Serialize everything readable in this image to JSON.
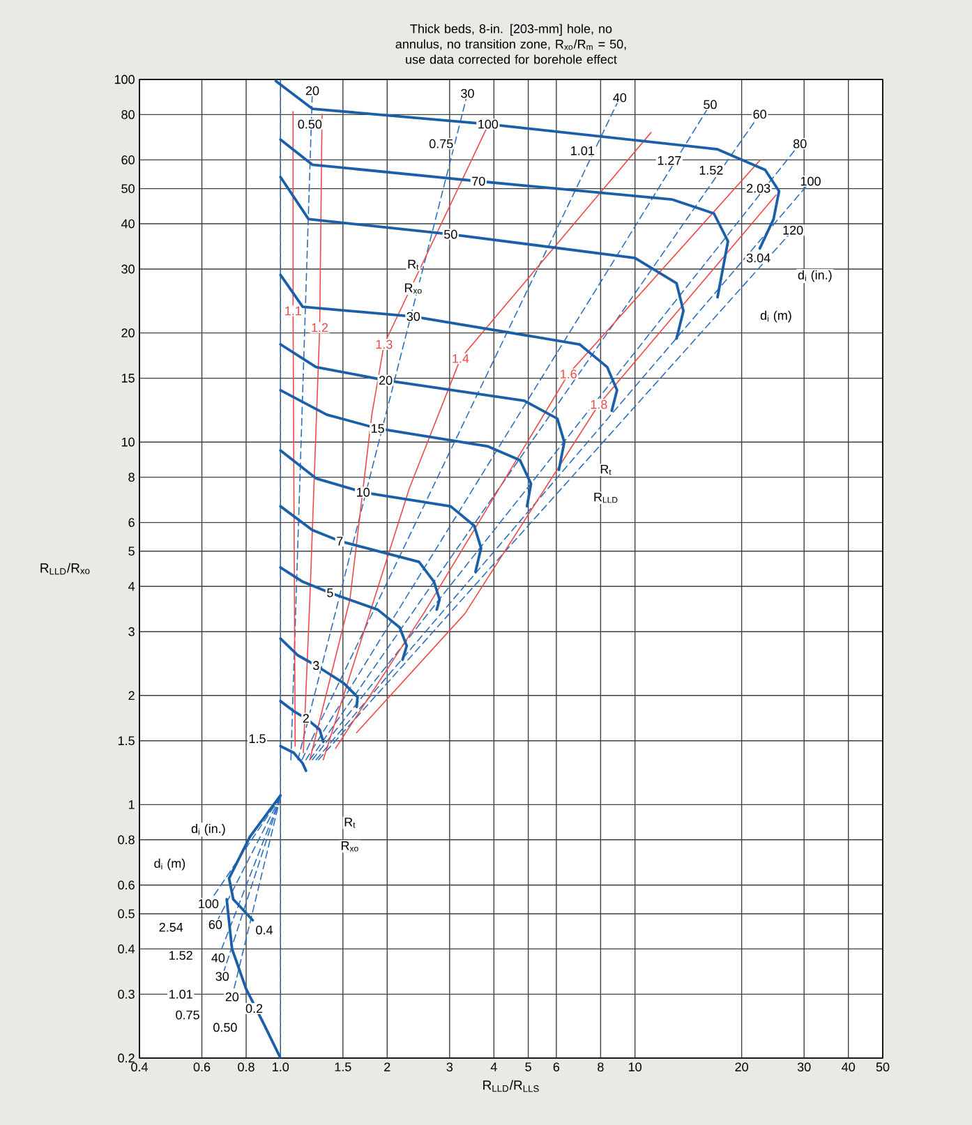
{
  "chart_data": {
    "type": "line",
    "title": "Thick beds, 8-in. [203-mm] hole, no annulus, no transition zone, R$_{xo}$/R$_{m}$ = 50,",
    "subtitle": "use data corrected for borehole effect",
    "xlabel": "R$_{LLD}$/R$_{LLS}$",
    "ylabel": "R$_{LLD}$/R$_{xo}$",
    "log": "xy",
    "grid": true,
    "xlim": [
      0.4,
      50
    ],
    "ylim": [
      0.2,
      100
    ],
    "xticks": [
      0.4,
      0.6,
      0.8,
      {
        "value": 1,
        "label": "1.0"
      },
      1.5,
      2,
      3,
      4,
      5,
      6,
      8,
      10,
      20,
      30,
      40,
      50
    ],
    "yticks": [
      0.2,
      0.3,
      0.4,
      0.5,
      0.6,
      0.8,
      1,
      1.5,
      2,
      3,
      4,
      5,
      6,
      8,
      10,
      15,
      20,
      30,
      40,
      50,
      60,
      80,
      100
    ],
    "series": [
      {
        "color": "#2a6fc0",
        "line_style": "dashed",
        "x": [
          1,
          1
        ],
        "values": [
          100,
          0.2
        ]
      },
      {
        "name": "20",
        "color": "#2a6fc0",
        "line_style": "dashed",
        "x": [
          1.07,
          1.23
        ],
        "values": [
          1.33,
          93.1
        ]
      },
      {
        "name": "30",
        "color": "#2a6fc0",
        "line_style": "dashed",
        "x": [
          1.12,
          3.37
        ],
        "values": [
          1.33,
          91.5
        ]
      },
      {
        "name": "40",
        "color": "#2a6fc0",
        "line_style": "dashed",
        "x": [
          1.15,
          9.06
        ],
        "values": [
          1.33,
          89.1
        ]
      },
      {
        "name": "50",
        "color": "#2a6fc0",
        "line_style": "dashed",
        "x": [
          1.18,
          16.3
        ],
        "values": [
          1.33,
          85.3
        ]
      },
      {
        "name": "60",
        "color": "#2a6fc0",
        "line_style": "dashed",
        "x": [
          1.21,
          22.5
        ],
        "values": [
          1.33,
          80.2
        ]
      },
      {
        "name": "80",
        "color": "#2a6fc0",
        "line_style": "dashed",
        "x": [
          1.23,
          29.2
        ],
        "values": [
          1.33,
          66.5
        ]
      },
      {
        "name": "100",
        "color": "#2a6fc0",
        "line_style": "dashed",
        "x": [
          1.26,
          31.3
        ],
        "values": [
          1.33,
          52.4
        ]
      },
      {
        "name": "120",
        "color": "#2a6fc0",
        "line_style": "dashed",
        "x": [
          1.28,
          27.9
        ],
        "values": [
          1.33,
          38.4
        ]
      },
      {
        "name": "100",
        "color": "#2a6fc0",
        "line_style": "dashed",
        "x": [
          1.0,
          0.626
        ],
        "values": [
          1.05,
          0.533
        ]
      },
      {
        "name": "60",
        "color": "#2a6fc0",
        "line_style": "dashed",
        "x": [
          1.0,
          0.655
        ],
        "values": [
          1.05,
          0.467
        ]
      },
      {
        "name": "40",
        "color": "#2a6fc0",
        "line_style": "dashed",
        "x": [
          1.0,
          0.667
        ],
        "values": [
          1.05,
          0.378
        ]
      },
      {
        "name": "30",
        "color": "#2a6fc0",
        "line_style": "dashed",
        "x": [
          1.0,
          0.685
        ],
        "values": [
          1.05,
          0.336
        ]
      },
      {
        "name": "20",
        "color": "#2a6fc0",
        "line_style": "dashed",
        "x": [
          1.0,
          0.73
        ],
        "values": [
          1.05,
          0.295
        ]
      },
      {
        "name": "1.1",
        "color": "#f04848",
        "line_style": "solid",
        "x": [
          1.085,
          1.085,
          1.1
        ],
        "values": [
          81.6,
          23.0,
          1.45
        ]
      },
      {
        "name": "1.2",
        "color": "#f04848",
        "line_style": "solid",
        "x": [
          1.31,
          1.29,
          1.21,
          1.16
        ],
        "values": [
          80.2,
          20.7,
          3.68,
          1.39
        ]
      },
      {
        "name": "1.3",
        "color": "#f04848",
        "line_style": "solid",
        "x": [
          3.85,
          1.96,
          1.81,
          1.57,
          1.21
        ],
        "values": [
          74.7,
          18.6,
          11.9,
          3.68,
          1.33
        ]
      },
      {
        "name": "1.4",
        "color": "#f04848",
        "line_style": "solid",
        "x": [
          11.1,
          3.22,
          2.31,
          1.32
        ],
        "values": [
          71.4,
          17.0,
          7.46,
          1.33
        ]
      },
      {
        "name": "1.6",
        "color": "#f04848",
        "line_style": "solid",
        "x": [
          22.5,
          6.49,
          2.53,
          1.43
        ],
        "values": [
          59.8,
          15.4,
          3.36,
          1.43
        ]
      },
      {
        "name": "1.8",
        "color": "#f04848",
        "line_style": "solid",
        "x": [
          25.0,
          7.91,
          3.31,
          1.64
        ],
        "values": [
          48.0,
          12.7,
          3.36,
          1.58
        ]
      },
      {
        "color": "#1a5fa8",
        "line_style": "solid",
        "x": [
          0.97,
          1.23,
          3.85,
          17.1,
          23.3,
          25.5,
          24.6,
          22.5
        ],
        "values": [
          99,
          83,
          75.3,
          64.2,
          56.3,
          49.2,
          41.2,
          34.2
        ]
      },
      {
        "color": "#1a5fa8",
        "line_style": "solid",
        "x": [
          1.0,
          1.23,
          3.62,
          12.7,
          16.7,
          18.3,
          17.1
        ],
        "values": [
          68.3,
          58.2,
          52.4,
          46.7,
          42.7,
          35.8,
          25.1
        ]
      },
      {
        "color": "#1a5fa8",
        "line_style": "solid",
        "x": [
          1.0,
          1.2,
          3.02,
          10,
          13.1,
          13.7,
          13.1
        ],
        "values": [
          53.8,
          41.2,
          37.4,
          32.2,
          27.4,
          23.0,
          19.3
        ]
      },
      {
        "color": "#1a5fa8",
        "line_style": "solid",
        "x": [
          1.0,
          1.155,
          2.37,
          6.98,
          8.35,
          8.9,
          8.6
        ],
        "values": [
          28.9,
          23.6,
          22.2,
          18.6,
          16.1,
          13.9,
          12.2
        ]
      },
      {
        "color": "#1a5fa8",
        "line_style": "solid",
        "x": [
          1.0,
          1.26,
          1.98,
          4.87,
          6.04,
          6.32,
          6.1
        ],
        "values": [
          18.6,
          16.1,
          14.8,
          13.0,
          11.6,
          10.0,
          8.38
        ]
      },
      {
        "color": "#1a5fa8",
        "line_style": "solid",
        "x": [
          1.0,
          1.35,
          1.88,
          3.85,
          4.74,
          5.09,
          4.96
        ],
        "values": [
          13.9,
          11.9,
          10.9,
          9.73,
          8.91,
          7.67,
          6.65
        ]
      },
      {
        "color": "#1a5fa8",
        "line_style": "solid",
        "x": [
          1.0,
          1.26,
          1.71,
          3.02,
          3.52,
          3.68,
          3.55
        ],
        "values": [
          9.48,
          7.94,
          7.27,
          6.65,
          5.88,
          5.1,
          4.39
        ]
      },
      {
        "color": "#1a5fa8",
        "line_style": "solid",
        "x": [
          1.0,
          1.23,
          1.47,
          2.46,
          2.71,
          2.81,
          2.76
        ],
        "values": [
          6.65,
          5.72,
          5.33,
          4.67,
          4.12,
          3.68,
          3.45
        ]
      },
      {
        "color": "#1a5fa8",
        "line_style": "solid",
        "x": [
          1.0,
          1.155,
          1.38,
          1.88,
          2.17,
          2.27,
          2.21
        ],
        "values": [
          4.51,
          4.12,
          3.84,
          3.45,
          3.08,
          2.74,
          2.51
        ]
      },
      {
        "color": "#1a5fa8",
        "line_style": "solid",
        "x": [
          1.0,
          1.12,
          1.26,
          1.51,
          1.65,
          1.64
        ],
        "values": [
          2.87,
          2.58,
          2.42,
          2.16,
          1.98,
          1.86
        ]
      },
      {
        "color": "#1a5fa8",
        "line_style": "solid",
        "x": [
          1.0,
          1.09,
          1.18,
          1.29,
          1.32
        ],
        "values": [
          1.93,
          1.81,
          1.73,
          1.61,
          1.49
        ]
      },
      {
        "color": "#1a5fa8",
        "line_style": "solid",
        "x": [
          1.0,
          1.09,
          1.155,
          1.18
        ],
        "values": [
          1.45,
          1.39,
          1.3,
          1.24
        ]
      },
      {
        "color": "#1a5fa8",
        "line_style": "solid",
        "x": [
          1.0,
          0.82,
          0.716,
          0.736,
          0.835
        ],
        "values": [
          1.06,
          0.816,
          0.626,
          0.548,
          0.48
        ]
      },
      {
        "color": "#1a5fa8",
        "line_style": "solid",
        "x": [
          0.705,
          0.73,
          0.8,
          0.9,
          1.0
        ],
        "values": [
          0.548,
          0.4,
          0.31,
          0.247,
          0.2
        ]
      }
    ],
    "annotations": [
      {
        "text": "100",
        "x": 3.85,
        "y": 75.3
      },
      {
        "text": "70",
        "x": 3.62,
        "y": 52.4
      },
      {
        "text": "50",
        "x": 3.02,
        "y": 37.4
      },
      {
        "text": "30",
        "x": 2.37,
        "y": 22.2
      },
      {
        "text": "20",
        "x": 1.98,
        "y": 14.8
      },
      {
        "text": "15",
        "x": 1.88,
        "y": 10.9
      },
      {
        "text": "10",
        "x": 1.71,
        "y": 7.27
      },
      {
        "text": "7",
        "x": 1.47,
        "y": 5.33
      },
      {
        "text": "5",
        "x": 1.38,
        "y": 3.84
      },
      {
        "text": "3",
        "x": 1.26,
        "y": 2.42
      },
      {
        "text": "2",
        "x": 1.18,
        "y": 1.73
      },
      {
        "text": "1.5",
        "x": 0.86,
        "y": 1.52
      },
      {
        "text": "0.4",
        "x": 0.9,
        "y": 0.451
      },
      {
        "text": "0.2",
        "x": 0.843,
        "y": 0.274
      },
      {
        "text": "0.50",
        "x": 1.21,
        "y": 75.3
      },
      {
        "text": "0.75",
        "x": 2.84,
        "y": 66.5
      },
      {
        "text": "1.01",
        "x": 7.11,
        "y": 63.6
      },
      {
        "text": "1.27",
        "x": 12.5,
        "y": 59.8
      },
      {
        "text": "1.52",
        "x": 16.4,
        "y": 56.2
      },
      {
        "text": "2.03",
        "x": 22.3,
        "y": 50.1
      },
      {
        "text": "3.04",
        "x": 22.3,
        "y": 32.2
      },
      {
        "text": "2.54",
        "x": 0.491,
        "y": 0.459
      },
      {
        "text": "1.52",
        "x": 0.523,
        "y": 0.384
      },
      {
        "text": "1.01",
        "x": 0.523,
        "y": 0.3
      },
      {
        "text": "0.75",
        "x": 0.547,
        "y": 0.263
      },
      {
        "text": "0.50",
        "x": 0.698,
        "y": 0.243
      },
      {
        "text": "d$_{i}$ (in.)",
        "x": 32.2,
        "y": 28.7
      },
      {
        "text": "d$_{i}$ (m)",
        "x": 25.0,
        "y": 22.2
      },
      {
        "text": "d$_{i}$ (in.)",
        "x": 0.626,
        "y": 0.853
      },
      {
        "text": "d$_{i}$ (m)",
        "x": 0.487,
        "y": 0.684
      },
      {
        "text": "R$_{t}$",
        "x": 2.37,
        "y": 30.8
      },
      {
        "text": "R$_{xo}$",
        "x": 2.37,
        "y": 26.5
      },
      {
        "text": "R$_{t}$",
        "x": 8.28,
        "y": 8.38
      },
      {
        "text": "R$_{LLD}$",
        "x": 8.28,
        "y": 7.02
      },
      {
        "text": "R$_{t}$",
        "x": 1.57,
        "y": 0.891
      },
      {
        "text": "R$_{xo}$",
        "x": 1.57,
        "y": 0.767
      }
    ]
  }
}
